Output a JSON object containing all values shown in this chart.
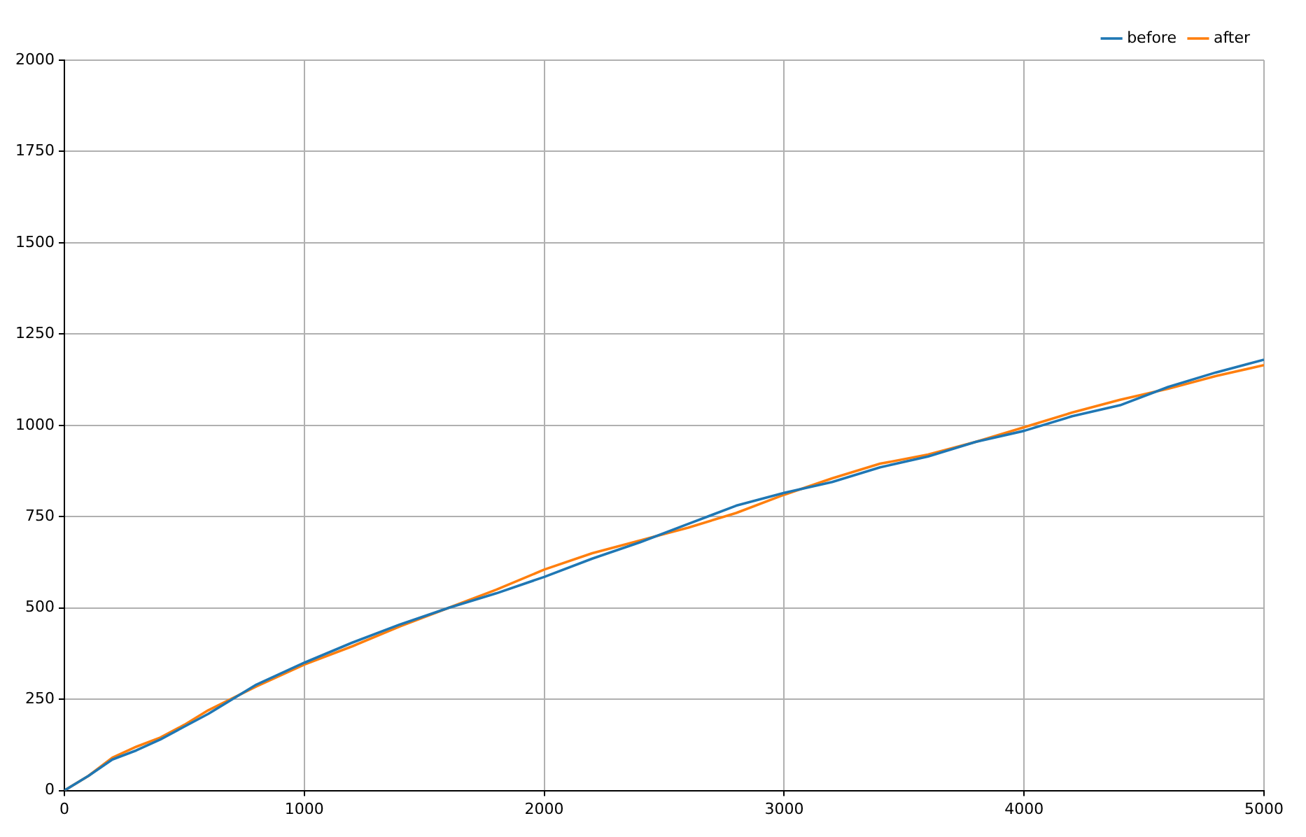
{
  "chart_data": {
    "type": "line",
    "xlim": [
      0,
      5000
    ],
    "ylim": [
      0,
      2000
    ],
    "xticks": [
      0,
      1000,
      2000,
      3000,
      4000,
      5000
    ],
    "yticks": [
      0,
      250,
      500,
      750,
      1000,
      1250,
      1500,
      1750,
      2000
    ],
    "grid": true,
    "legend": "top right",
    "marker": "none",
    "line_style": "solid",
    "x": [
      0,
      100,
      200,
      300,
      400,
      500,
      600,
      800,
      1000,
      1200,
      1400,
      1600,
      1800,
      2000,
      2200,
      2400,
      2600,
      2800,
      3000,
      3200,
      3400,
      3600,
      3800,
      4000,
      4200,
      4400,
      4600,
      4800,
      5000
    ],
    "series": [
      {
        "name": "before",
        "color": "#1f77b4",
        "values": [
          0,
          40,
          85,
          110,
          140,
          175,
          210,
          290,
          350,
          405,
          455,
          500,
          540,
          585,
          635,
          680,
          730,
          780,
          815,
          845,
          885,
          915,
          955,
          985,
          1025,
          1055,
          1105,
          1145,
          1180
        ]
      },
      {
        "name": "after",
        "color": "#ff7f0e",
        "values": [
          0,
          40,
          90,
          120,
          145,
          180,
          220,
          285,
          345,
          395,
          450,
          500,
          550,
          605,
          650,
          685,
          720,
          760,
          810,
          855,
          895,
          920,
          955,
          995,
          1035,
          1070,
          1100,
          1135,
          1165
        ]
      }
    ]
  }
}
